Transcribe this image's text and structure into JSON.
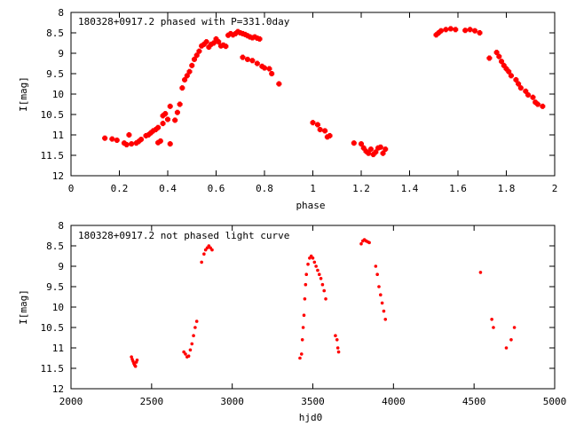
{
  "chart_data": [
    {
      "type": "scatter",
      "title": "180328+0917.2 phased with P=331.0day",
      "xlabel": "phase",
      "ylabel": "I[mag]",
      "xlim": [
        0,
        2
      ],
      "ylim": [
        12,
        8
      ],
      "y_inverted": true,
      "grid": false,
      "xticks": [
        0,
        0.2,
        0.4,
        0.6,
        0.8,
        1,
        1.2,
        1.4,
        1.6,
        1.8,
        2
      ],
      "yticks": [
        8,
        8.5,
        9,
        9.5,
        10,
        10.5,
        11,
        11.5,
        12
      ],
      "xtick_labels": [
        "0",
        "0.2",
        "0.4",
        "0.6",
        "0.8",
        "1",
        "1.2",
        "1.4",
        "1.6",
        "1.8",
        "2"
      ],
      "ytick_labels": [
        "8",
        "8.5",
        "9",
        "9.5",
        "10",
        "10.5",
        "11",
        "11.5",
        "12"
      ],
      "marker_color": "#ff0000",
      "points": [
        [
          0.14,
          11.08
        ],
        [
          0.17,
          11.1
        ],
        [
          0.19,
          11.13
        ],
        [
          0.22,
          11.2
        ],
        [
          0.23,
          11.24
        ],
        [
          0.24,
          11.0
        ],
        [
          0.25,
          11.22
        ],
        [
          0.27,
          11.2
        ],
        [
          0.28,
          11.16
        ],
        [
          0.29,
          11.11
        ],
        [
          0.31,
          11.02
        ],
        [
          0.32,
          11.0
        ],
        [
          0.33,
          10.95
        ],
        [
          0.34,
          10.9
        ],
        [
          0.35,
          10.87
        ],
        [
          0.36,
          10.82
        ],
        [
          0.36,
          11.19
        ],
        [
          0.37,
          11.15
        ],
        [
          0.38,
          10.72
        ],
        [
          0.38,
          10.53
        ],
        [
          0.39,
          10.48
        ],
        [
          0.4,
          10.62
        ],
        [
          0.41,
          10.3
        ],
        [
          0.41,
          11.22
        ],
        [
          0.43,
          10.64
        ],
        [
          0.44,
          10.45
        ],
        [
          0.45,
          10.25
        ],
        [
          0.46,
          9.85
        ],
        [
          0.47,
          9.65
        ],
        [
          0.48,
          9.55
        ],
        [
          0.49,
          9.45
        ],
        [
          0.5,
          9.3
        ],
        [
          0.51,
          9.15
        ],
        [
          0.52,
          9.05
        ],
        [
          0.53,
          8.95
        ],
        [
          0.54,
          8.82
        ],
        [
          0.55,
          8.78
        ],
        [
          0.56,
          8.72
        ],
        [
          0.57,
          8.85
        ],
        [
          0.58,
          8.78
        ],
        [
          0.59,
          8.75
        ],
        [
          0.6,
          8.65
        ],
        [
          0.61,
          8.72
        ],
        [
          0.62,
          8.82
        ],
        [
          0.63,
          8.8
        ],
        [
          0.64,
          8.83
        ],
        [
          0.65,
          8.56
        ],
        [
          0.66,
          8.52
        ],
        [
          0.67,
          8.55
        ],
        [
          0.68,
          8.52
        ],
        [
          0.69,
          8.47
        ],
        [
          0.7,
          8.5
        ],
        [
          0.71,
          8.52
        ],
        [
          0.72,
          8.54
        ],
        [
          0.73,
          8.57
        ],
        [
          0.74,
          8.6
        ],
        [
          0.75,
          8.62
        ],
        [
          0.76,
          8.6
        ],
        [
          0.77,
          8.63
        ],
        [
          0.78,
          8.65
        ],
        [
          0.71,
          9.1
        ],
        [
          0.73,
          9.15
        ],
        [
          0.75,
          9.18
        ],
        [
          0.77,
          9.25
        ],
        [
          0.79,
          9.32
        ],
        [
          0.8,
          9.36
        ],
        [
          0.82,
          9.38
        ],
        [
          0.83,
          9.5
        ],
        [
          0.86,
          9.75
        ],
        [
          1.0,
          10.7
        ],
        [
          1.02,
          10.75
        ],
        [
          1.03,
          10.87
        ],
        [
          1.05,
          10.9
        ],
        [
          1.06,
          11.05
        ],
        [
          1.07,
          11.02
        ],
        [
          1.17,
          11.2
        ],
        [
          1.2,
          11.22
        ],
        [
          1.21,
          11.32
        ],
        [
          1.22,
          11.4
        ],
        [
          1.23,
          11.45
        ],
        [
          1.24,
          11.35
        ],
        [
          1.25,
          11.48
        ],
        [
          1.26,
          11.42
        ],
        [
          1.27,
          11.32
        ],
        [
          1.28,
          11.3
        ],
        [
          1.29,
          11.45
        ],
        [
          1.3,
          11.35
        ],
        [
          1.51,
          8.55
        ],
        [
          1.52,
          8.5
        ],
        [
          1.53,
          8.45
        ],
        [
          1.55,
          8.42
        ],
        [
          1.57,
          8.4
        ],
        [
          1.59,
          8.42
        ],
        [
          1.63,
          8.44
        ],
        [
          1.65,
          8.42
        ],
        [
          1.67,
          8.45
        ],
        [
          1.69,
          8.5
        ],
        [
          1.73,
          9.12
        ],
        [
          1.76,
          8.98
        ],
        [
          1.77,
          9.08
        ],
        [
          1.78,
          9.2
        ],
        [
          1.79,
          9.3
        ],
        [
          1.8,
          9.38
        ],
        [
          1.81,
          9.45
        ],
        [
          1.82,
          9.55
        ],
        [
          1.84,
          9.65
        ],
        [
          1.85,
          9.75
        ],
        [
          1.86,
          9.85
        ],
        [
          1.88,
          9.93
        ],
        [
          1.89,
          10.02
        ],
        [
          1.91,
          10.08
        ],
        [
          1.92,
          10.2
        ],
        [
          1.93,
          10.25
        ],
        [
          1.95,
          10.3
        ]
      ]
    },
    {
      "type": "scatter",
      "title": "180328+0917.2 not phased light curve",
      "xlabel": "hjd0",
      "ylabel": "I[mag]",
      "xlim": [
        2000,
        5000
      ],
      "ylim": [
        12,
        8
      ],
      "y_inverted": true,
      "grid": false,
      "xticks": [
        2000,
        2500,
        3000,
        3500,
        4000,
        4500,
        5000
      ],
      "yticks": [
        8,
        8.5,
        9,
        9.5,
        10,
        10.5,
        11,
        11.5,
        12
      ],
      "xtick_labels": [
        "2000",
        "2500",
        "3000",
        "3500",
        "4000",
        "4500",
        "5000"
      ],
      "ytick_labels": [
        "8",
        "8.5",
        "9",
        "9.5",
        "10",
        "10.5",
        "11",
        "11.5",
        "12"
      ],
      "marker_color": "#ff0000",
      "points": [
        [
          2375,
          11.22
        ],
        [
          2380,
          11.28
        ],
        [
          2385,
          11.33
        ],
        [
          2390,
          11.38
        ],
        [
          2395,
          11.42
        ],
        [
          2400,
          11.45
        ],
        [
          2405,
          11.35
        ],
        [
          2410,
          11.3
        ],
        [
          2700,
          11.1
        ],
        [
          2710,
          11.15
        ],
        [
          2720,
          11.22
        ],
        [
          2730,
          11.2
        ],
        [
          2740,
          11.05
        ],
        [
          2750,
          10.9
        ],
        [
          2760,
          10.7
        ],
        [
          2770,
          10.5
        ],
        [
          2780,
          10.35
        ],
        [
          2810,
          8.9
        ],
        [
          2825,
          8.7
        ],
        [
          2835,
          8.6
        ],
        [
          2845,
          8.55
        ],
        [
          2855,
          8.5
        ],
        [
          2865,
          8.55
        ],
        [
          2875,
          8.6
        ],
        [
          3420,
          11.25
        ],
        [
          3430,
          11.15
        ],
        [
          3435,
          10.8
        ],
        [
          3440,
          10.5
        ],
        [
          3445,
          10.2
        ],
        [
          3450,
          9.8
        ],
        [
          3455,
          9.45
        ],
        [
          3460,
          9.2
        ],
        [
          3470,
          8.95
        ],
        [
          3480,
          8.8
        ],
        [
          3490,
          8.75
        ],
        [
          3500,
          8.8
        ],
        [
          3510,
          8.9
        ],
        [
          3520,
          9.0
        ],
        [
          3530,
          9.1
        ],
        [
          3540,
          9.2
        ],
        [
          3550,
          9.3
        ],
        [
          3560,
          9.45
        ],
        [
          3570,
          9.6
        ],
        [
          3580,
          9.8
        ],
        [
          3640,
          10.7
        ],
        [
          3650,
          10.8
        ],
        [
          3655,
          11.0
        ],
        [
          3660,
          11.1
        ],
        [
          3800,
          8.45
        ],
        [
          3810,
          8.38
        ],
        [
          3820,
          8.35
        ],
        [
          3830,
          8.38
        ],
        [
          3840,
          8.4
        ],
        [
          3850,
          8.42
        ],
        [
          3890,
          9.0
        ],
        [
          3900,
          9.2
        ],
        [
          3910,
          9.5
        ],
        [
          3920,
          9.7
        ],
        [
          3930,
          9.9
        ],
        [
          3940,
          10.1
        ],
        [
          3950,
          10.3
        ],
        [
          4540,
          9.15
        ],
        [
          4610,
          10.3
        ],
        [
          4620,
          10.5
        ],
        [
          4700,
          11.0
        ],
        [
          4730,
          10.8
        ],
        [
          4750,
          10.5
        ]
      ]
    }
  ]
}
